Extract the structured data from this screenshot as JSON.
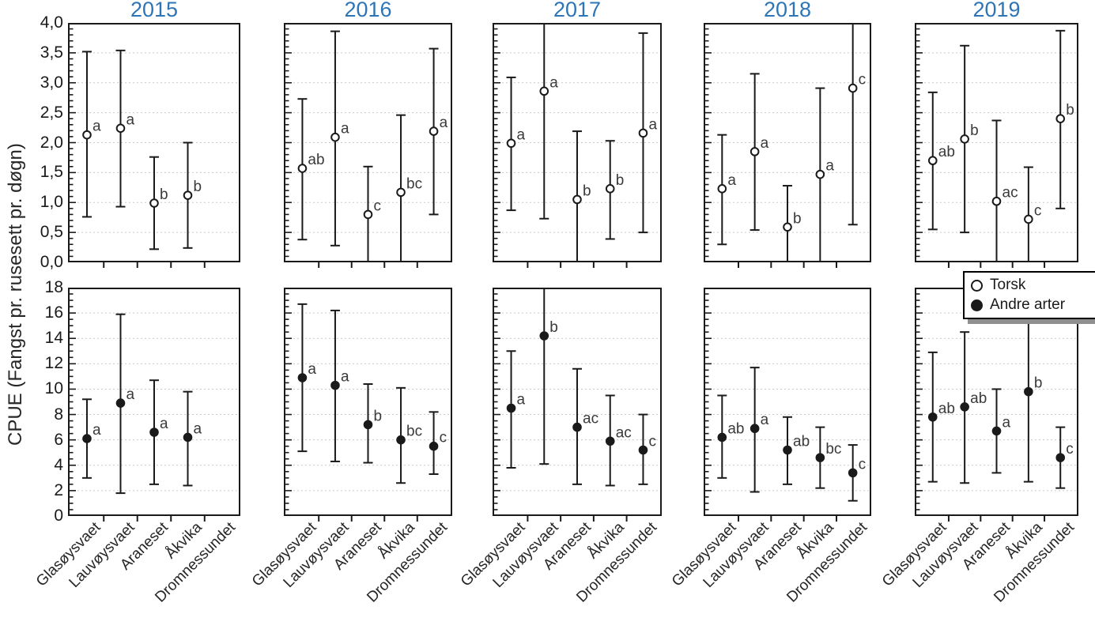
{
  "figure": {
    "title_color": "#2E75B6",
    "axis_color": "#1a1a1a",
    "grid_color": "#c9c9c9",
    "letter_color": "#3a3a3a"
  },
  "legend": {
    "items": [
      {
        "label": "Torsk",
        "marker": "open"
      },
      {
        "label": "Andre arter",
        "marker": "filled"
      }
    ]
  },
  "chart_data": {
    "type": "scatter",
    "title": "",
    "ylabel": "CPUE (Fangst pr. rusesett pr. døgn)",
    "xlabel": "",
    "grid": true,
    "legend_position": "top-right over 2019 bottom panel",
    "years": [
      "2015",
      "2016",
      "2017",
      "2018",
      "2019"
    ],
    "categories": [
      "Glasøysvaet",
      "Lauvøysvaet",
      "Araneset",
      "Åkvika",
      "Dromnessundet"
    ],
    "rows": [
      {
        "series": "Torsk",
        "marker": "open",
        "ylim": [
          0,
          4
        ],
        "ytick_step": 0.5,
        "minor_step": 0.1,
        "ytick_labels": [
          "4,0",
          "3,5",
          "3,0",
          "2,5",
          "2,0",
          "1,5",
          "1,0",
          "0,5",
          "0,0"
        ],
        "panels": {
          "2015": [
            {
              "v": 2.13,
              "lo": 0.76,
              "hi": 3.52,
              "sig": "a"
            },
            {
              "v": 2.24,
              "lo": 0.93,
              "hi": 3.54,
              "sig": "a"
            },
            {
              "v": 0.99,
              "lo": 0.22,
              "hi": 1.76,
              "sig": "b"
            },
            {
              "v": 1.12,
              "lo": 0.24,
              "hi": 2.0,
              "sig": "b"
            },
            null
          ],
          "2016": [
            {
              "v": 1.57,
              "lo": 0.38,
              "hi": 2.73,
              "sig": "ab"
            },
            {
              "v": 2.09,
              "lo": 0.28,
              "hi": 3.86,
              "sig": "a"
            },
            {
              "v": 0.8,
              "lo": null,
              "hi": 1.6,
              "sig": "c"
            },
            {
              "v": 1.17,
              "lo": null,
              "hi": 2.46,
              "sig": "bc"
            },
            {
              "v": 2.19,
              "lo": 0.8,
              "hi": 3.57,
              "sig": "a"
            }
          ],
          "2017": [
            {
              "v": 1.99,
              "lo": 0.87,
              "hi": 3.09,
              "sig": "a"
            },
            {
              "v": 2.86,
              "lo": 0.73,
              "hi": null,
              "sig": "a"
            },
            {
              "v": 1.05,
              "lo": null,
              "hi": 2.19,
              "sig": "b"
            },
            {
              "v": 1.23,
              "lo": 0.39,
              "hi": 2.03,
              "sig": "b"
            },
            {
              "v": 2.16,
              "lo": 0.5,
              "hi": 3.83,
              "sig": "a"
            }
          ],
          "2018": [
            {
              "v": 1.23,
              "lo": 0.3,
              "hi": 2.13,
              "sig": "a"
            },
            {
              "v": 1.85,
              "lo": 0.54,
              "hi": 3.15,
              "sig": "a"
            },
            {
              "v": 0.59,
              "lo": null,
              "hi": 1.28,
              "sig": "b"
            },
            {
              "v": 1.47,
              "lo": null,
              "hi": 2.91,
              "sig": "a"
            },
            {
              "v": 2.91,
              "lo": 0.63,
              "hi": null,
              "sig": "c"
            }
          ],
          "2019": [
            {
              "v": 1.7,
              "lo": 0.55,
              "hi": 2.84,
              "sig": "ab"
            },
            {
              "v": 2.06,
              "lo": 0.5,
              "hi": 3.62,
              "sig": "b"
            },
            {
              "v": 1.02,
              "lo": null,
              "hi": 2.37,
              "sig": "ac"
            },
            {
              "v": 0.72,
              "lo": null,
              "hi": 1.59,
              "sig": "c"
            },
            {
              "v": 2.4,
              "lo": 0.9,
              "hi": 3.87,
              "sig": "b"
            }
          ]
        }
      },
      {
        "series": "Andre arter",
        "marker": "filled",
        "ylim": [
          0,
          18
        ],
        "ytick_step": 2,
        "minor_step": 0.5,
        "ytick_labels": [
          "18",
          "16",
          "14",
          "12",
          "10",
          "8",
          "6",
          "4",
          "2",
          "0"
        ],
        "panels": {
          "2015": [
            {
              "v": 6.1,
              "lo": 3.0,
              "hi": 9.2,
              "sig": "a"
            },
            {
              "v": 8.9,
              "lo": 1.8,
              "hi": 15.9,
              "sig": "a"
            },
            {
              "v": 6.6,
              "lo": 2.5,
              "hi": 10.7,
              "sig": "a"
            },
            {
              "v": 6.2,
              "lo": 2.4,
              "hi": 9.8,
              "sig": "a"
            },
            null
          ],
          "2016": [
            {
              "v": 10.9,
              "lo": 5.1,
              "hi": 16.7,
              "sig": "a"
            },
            {
              "v": 10.3,
              "lo": 4.3,
              "hi": 16.2,
              "sig": "a"
            },
            {
              "v": 7.2,
              "lo": 4.2,
              "hi": 10.4,
              "sig": "b"
            },
            {
              "v": 6.0,
              "lo": 2.6,
              "hi": 10.1,
              "sig": "bc"
            },
            {
              "v": 5.5,
              "lo": 3.3,
              "hi": 8.2,
              "sig": "c"
            }
          ],
          "2017": [
            {
              "v": 8.5,
              "lo": 3.8,
              "hi": 13.0,
              "sig": "a"
            },
            {
              "v": 14.2,
              "lo": 4.1,
              "hi": null,
              "sig": "b"
            },
            {
              "v": 7.0,
              "lo": 2.5,
              "hi": 11.6,
              "sig": "ac"
            },
            {
              "v": 5.9,
              "lo": 2.4,
              "hi": 9.5,
              "sig": "ac"
            },
            {
              "v": 5.2,
              "lo": 2.5,
              "hi": 8.0,
              "sig": "c"
            }
          ],
          "2018": [
            {
              "v": 6.2,
              "lo": 3.0,
              "hi": 9.5,
              "sig": "ab"
            },
            {
              "v": 6.9,
              "lo": 1.9,
              "hi": 11.7,
              "sig": "a"
            },
            {
              "v": 5.2,
              "lo": 2.5,
              "hi": 7.8,
              "sig": "ab"
            },
            {
              "v": 4.6,
              "lo": 2.2,
              "hi": 7.0,
              "sig": "bc"
            },
            {
              "v": 3.4,
              "lo": 1.2,
              "hi": 5.6,
              "sig": "c"
            }
          ],
          "2019": [
            {
              "v": 7.8,
              "lo": 2.7,
              "hi": 12.9,
              "sig": "ab"
            },
            {
              "v": 8.6,
              "lo": 2.6,
              "hi": 14.5,
              "sig": "ab"
            },
            {
              "v": 6.7,
              "lo": 3.4,
              "hi": 10.0,
              "sig": "a"
            },
            {
              "v": 9.8,
              "lo": 2.7,
              "hi": 16.6,
              "sig": "b"
            },
            {
              "v": 4.6,
              "lo": 2.2,
              "hi": 7.0,
              "sig": "c"
            }
          ]
        }
      }
    ]
  }
}
